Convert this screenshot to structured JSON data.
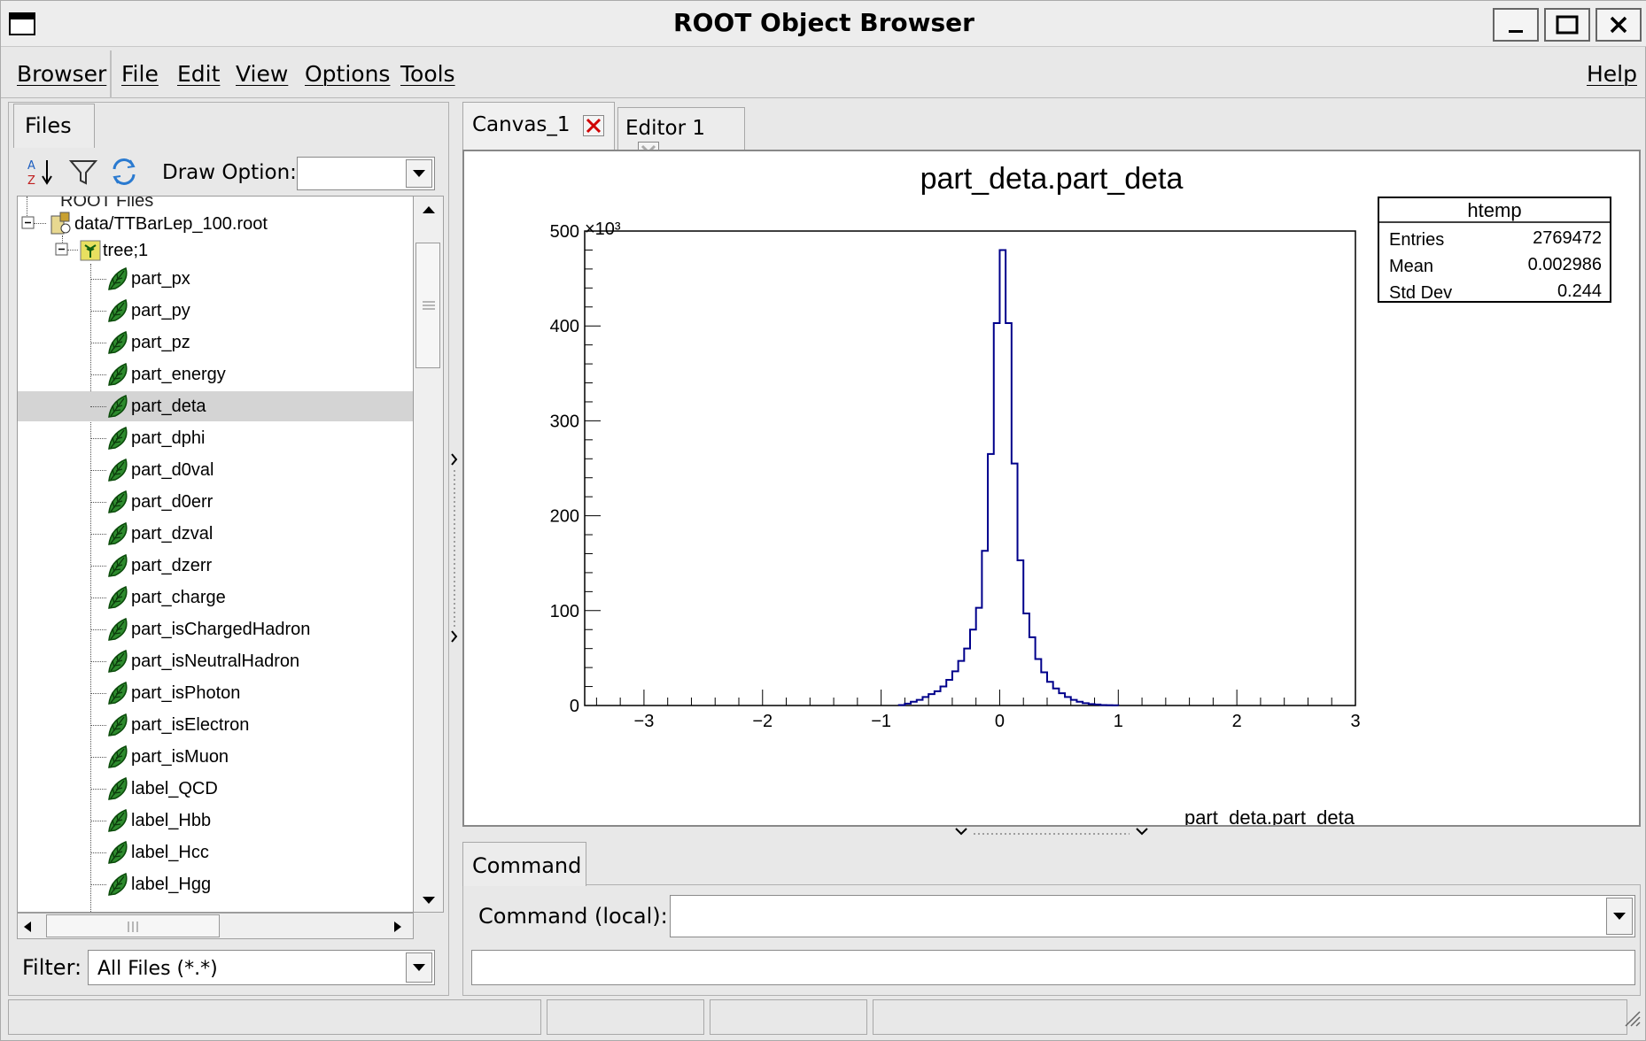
{
  "window": {
    "title": "ROOT Object Browser"
  },
  "menubar": {
    "browser": "Browser",
    "file": "File",
    "edit": "Edit",
    "view": "View",
    "options": "Options",
    "tools": "Tools",
    "help": "Help"
  },
  "left": {
    "tab": "Files",
    "draw_option_label": "Draw Option:",
    "draw_option_value": "",
    "tree_root_partial": "ROOT Files",
    "file": "data/TTBarLep_100.root",
    "tree": "tree;1",
    "leaves": [
      "part_px",
      "part_py",
      "part_pz",
      "part_energy",
      "part_deta",
      "part_dphi",
      "part_d0val",
      "part_d0err",
      "part_dzval",
      "part_dzerr",
      "part_charge",
      "part_isChargedHadron",
      "part_isNeutralHadron",
      "part_isPhoton",
      "part_isElectron",
      "part_isMuon",
      "label_QCD",
      "label_Hbb",
      "label_Hcc",
      "label_Hgg"
    ],
    "selected": "part_deta",
    "filter_label": "Filter:",
    "filter_value": "All Files (*.*)"
  },
  "tabs": {
    "canvas": "Canvas_1",
    "editor": "Editor 1"
  },
  "command": {
    "tab": "Command",
    "label": "Command (local):",
    "value": "",
    "output": ""
  },
  "statusbar": {
    "cells": [
      "",
      "",
      "",
      ""
    ]
  },
  "stats": {
    "name": "htemp",
    "entries_label": "Entries",
    "entries": "2769472",
    "mean_label": "Mean",
    "mean": "0.002986",
    "std_label": "Std Dev",
    "std": "0.244"
  },
  "chart_data": {
    "type": "histogram",
    "title": "part_deta.part_deta",
    "xlabel": "part_deta.part_deta",
    "ylabel": "",
    "y_multiplier": "×10³",
    "xlim": [
      -3.5,
      3.0
    ],
    "ylim": [
      0,
      500
    ],
    "xticks": [
      "−3",
      "−2",
      "−1",
      "0",
      "1",
      "2",
      "3"
    ],
    "yticks": [
      "0",
      "100",
      "200",
      "300",
      "400",
      "500"
    ],
    "line_color": "#00008b",
    "bin_width": 0.05,
    "bins": [
      [
        -0.85,
        0.5
      ],
      [
        -0.8,
        2
      ],
      [
        -0.75,
        4
      ],
      [
        -0.7,
        6
      ],
      [
        -0.65,
        9
      ],
      [
        -0.6,
        12
      ],
      [
        -0.55,
        15
      ],
      [
        -0.5,
        20
      ],
      [
        -0.45,
        27
      ],
      [
        -0.4,
        36
      ],
      [
        -0.35,
        47
      ],
      [
        -0.3,
        60
      ],
      [
        -0.25,
        80
      ],
      [
        -0.2,
        103
      ],
      [
        -0.15,
        163
      ],
      [
        -0.1,
        265
      ],
      [
        -0.05,
        403
      ],
      [
        0.0,
        480
      ],
      [
        0.05,
        403
      ],
      [
        0.1,
        255
      ],
      [
        0.15,
        153
      ],
      [
        0.2,
        97
      ],
      [
        0.25,
        72
      ],
      [
        0.3,
        49
      ],
      [
        0.35,
        35
      ],
      [
        0.4,
        25
      ],
      [
        0.45,
        18
      ],
      [
        0.5,
        13
      ],
      [
        0.55,
        9
      ],
      [
        0.6,
        6
      ],
      [
        0.65,
        4
      ],
      [
        0.7,
        2.5
      ],
      [
        0.75,
        1.5
      ],
      [
        0.8,
        1
      ],
      [
        0.85,
        0.5
      ],
      [
        0.9,
        0.3
      ],
      [
        0.95,
        0.2
      ]
    ]
  }
}
